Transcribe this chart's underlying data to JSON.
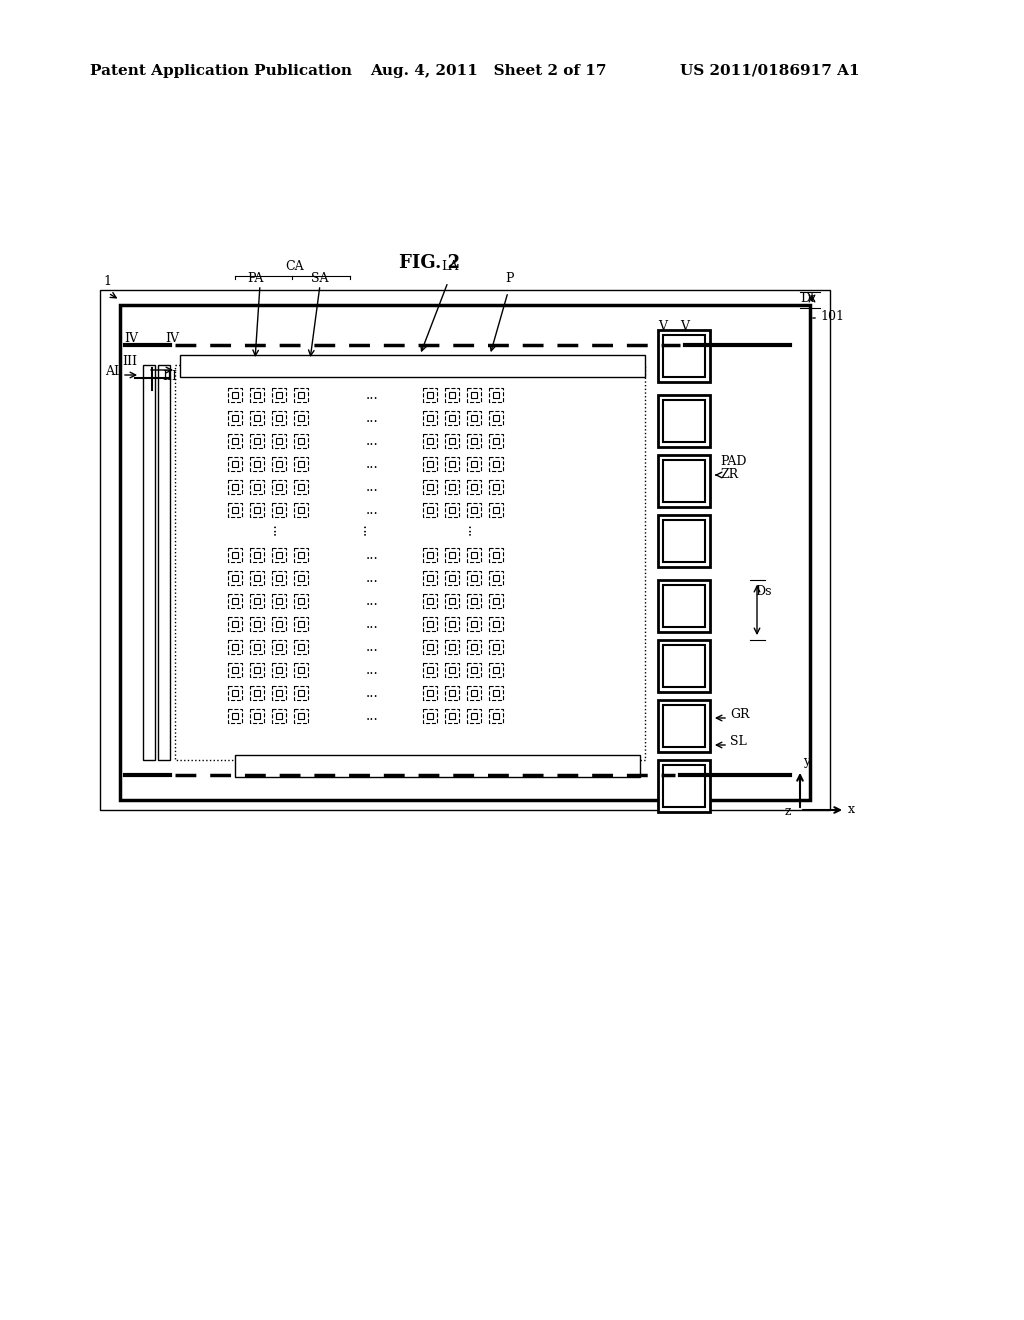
{
  "bg_color": "#ffffff",
  "header_left": "Patent Application Publication",
  "header_mid": "Aug. 4, 2011   Sheet 2 of 17",
  "header_right": "US 2011/0186917 A1",
  "fig_title": "FIG. 2",
  "label_1": "1",
  "label_101": "101",
  "label_CA": "CA",
  "label_PA": "PA",
  "label_SA": "SA",
  "label_LA": "LA",
  "label_P": "P",
  "label_Dt": "Dt",
  "label_IV": "IV",
  "label_III": "III",
  "label_V": "V",
  "label_AL": "AL",
  "label_PAD": "PAD",
  "label_ZR": "ZR",
  "label_Ds": "Ds",
  "label_GR": "GR",
  "label_SL": "SL",
  "label_x": "x",
  "label_y": "y",
  "label_z": "z"
}
